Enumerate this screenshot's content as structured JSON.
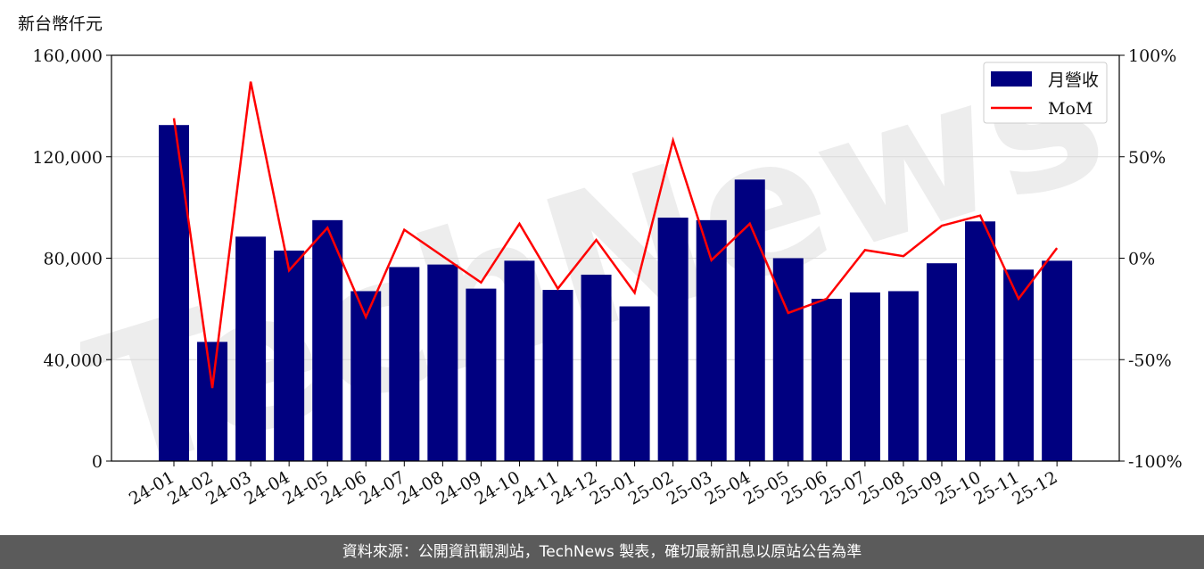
{
  "chart_data": {
    "type": "bar",
    "unit_label": "新台幣仟元",
    "watermark": "TechNews",
    "categories": [
      "24-01",
      "24-02",
      "24-03",
      "24-04",
      "24-05",
      "24-06",
      "24-07",
      "24-08",
      "24-09",
      "24-10",
      "24-11",
      "24-12",
      "25-01",
      "25-02",
      "25-03",
      "25-04",
      "25-05",
      "25-06",
      "25-07",
      "25-08",
      "25-09",
      "25-10",
      "25-11",
      "25-12"
    ],
    "series": [
      {
        "name": "月營收",
        "type": "bar",
        "axis": "left",
        "color": "#000080",
        "values": [
          132500,
          47000,
          88500,
          83000,
          95000,
          67000,
          76500,
          77500,
          68000,
          79000,
          67500,
          73500,
          61000,
          96000,
          95000,
          111000,
          80000,
          64000,
          66500,
          67000,
          78000,
          94500,
          75500,
          79000
        ]
      },
      {
        "name": "MoM",
        "type": "line",
        "axis": "right",
        "color": "#ff0000",
        "unit": "%",
        "values": [
          69,
          -64,
          87,
          -6,
          15,
          -29,
          14,
          1,
          -12,
          17,
          -15,
          9,
          -17,
          58,
          -1,
          17,
          -27,
          -20,
          4,
          1,
          16,
          21,
          -20,
          5
        ]
      }
    ],
    "y_left": {
      "min": 0,
      "max": 160000,
      "ticks": [
        "0",
        "40,000",
        "80,000",
        "120,000",
        "160,000"
      ],
      "tick_values": [
        0,
        40000,
        80000,
        120000,
        160000
      ]
    },
    "y_right": {
      "min": -100,
      "max": 100,
      "ticks": [
        "-100%",
        "-50%",
        "0%",
        "50%",
        "100%"
      ],
      "tick_values": [
        -100,
        -50,
        0,
        50,
        100
      ]
    },
    "grid": true,
    "legend_position": "top-right"
  },
  "footer": "資料來源：公開資訊觀測站，TechNews 製表，確切最新訊息以原站公告為準"
}
